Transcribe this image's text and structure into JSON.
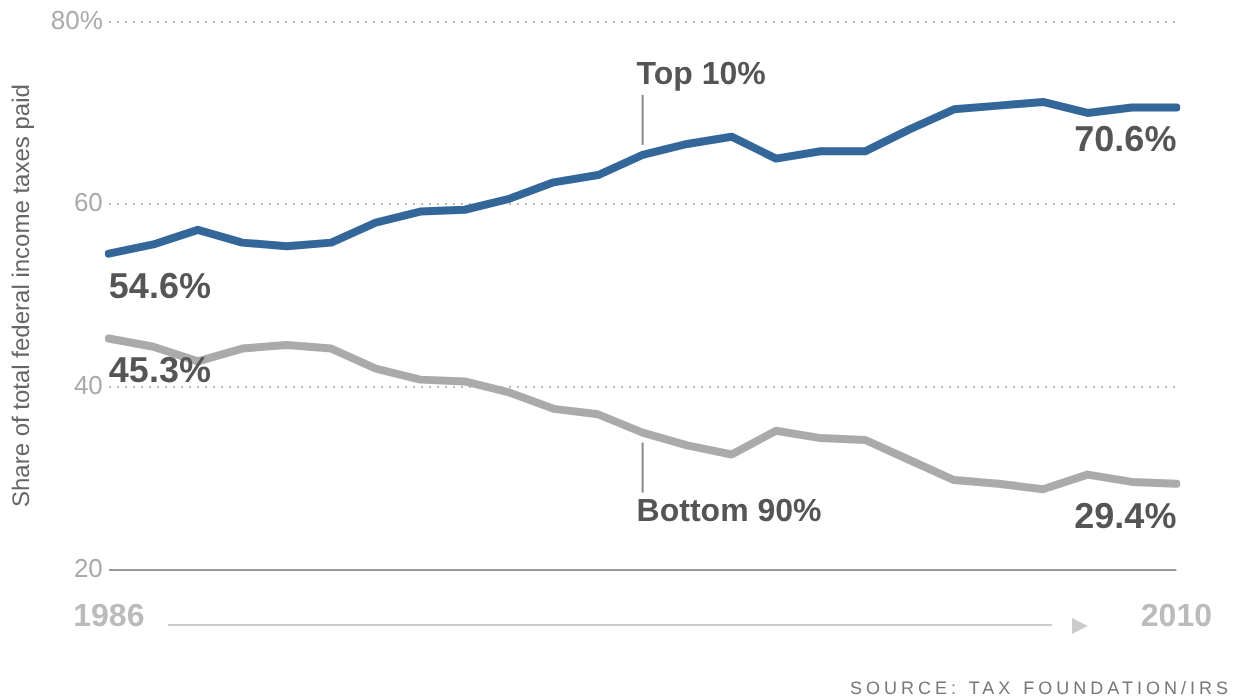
{
  "chart_data": {
    "type": "line",
    "ylabel": "Share of total federal income taxes paid",
    "categories": [
      "1986",
      null,
      null,
      null,
      null,
      null,
      null,
      null,
      null,
      null,
      null,
      null,
      null,
      null,
      null,
      null,
      null,
      null,
      null,
      null,
      null,
      null,
      null,
      null,
      "2010"
    ],
    "series": [
      {
        "name": "Top 10%",
        "color": "#336699",
        "values": [
          54.6,
          55.6,
          57.2,
          55.8,
          55.4,
          55.8,
          58.0,
          59.2,
          59.4,
          60.6,
          62.4,
          63.2,
          65.4,
          66.6,
          67.4,
          65.0,
          65.8,
          65.8,
          68.2,
          70.4,
          70.8,
          71.2,
          70.0,
          70.6,
          70.6
        ],
        "value_labels": [
          "54.6%",
          null,
          null,
          null,
          null,
          null,
          null,
          null,
          null,
          null,
          null,
          null,
          null,
          null,
          null,
          null,
          null,
          null,
          null,
          null,
          null,
          null,
          null,
          null,
          "70.6%"
        ]
      },
      {
        "name": "Bottom 90%",
        "color": "#aaaaaa",
        "values": [
          45.3,
          44.4,
          42.8,
          44.2,
          44.6,
          44.2,
          42.0,
          40.8,
          40.6,
          39.4,
          37.6,
          37.0,
          35.0,
          33.6,
          32.6,
          35.2,
          34.4,
          34.2,
          32.0,
          29.8,
          29.4,
          28.8,
          30.4,
          29.6,
          29.4
        ],
        "value_labels": [
          "45.3%",
          null,
          null,
          null,
          null,
          null,
          null,
          null,
          null,
          null,
          null,
          null,
          null,
          null,
          null,
          null,
          null,
          null,
          null,
          null,
          null,
          null,
          null,
          null,
          "29.4%"
        ]
      }
    ],
    "ylim": [
      20,
      80
    ],
    "yticks": [
      20,
      40,
      60,
      {
        "value": 80,
        "label": "80%"
      }
    ],
    "grid": "y",
    "legend": false,
    "marker": "none",
    "line_style": "solid",
    "annotations": [
      "SOURCE: TAX FOUNDATION/IRS"
    ]
  }
}
